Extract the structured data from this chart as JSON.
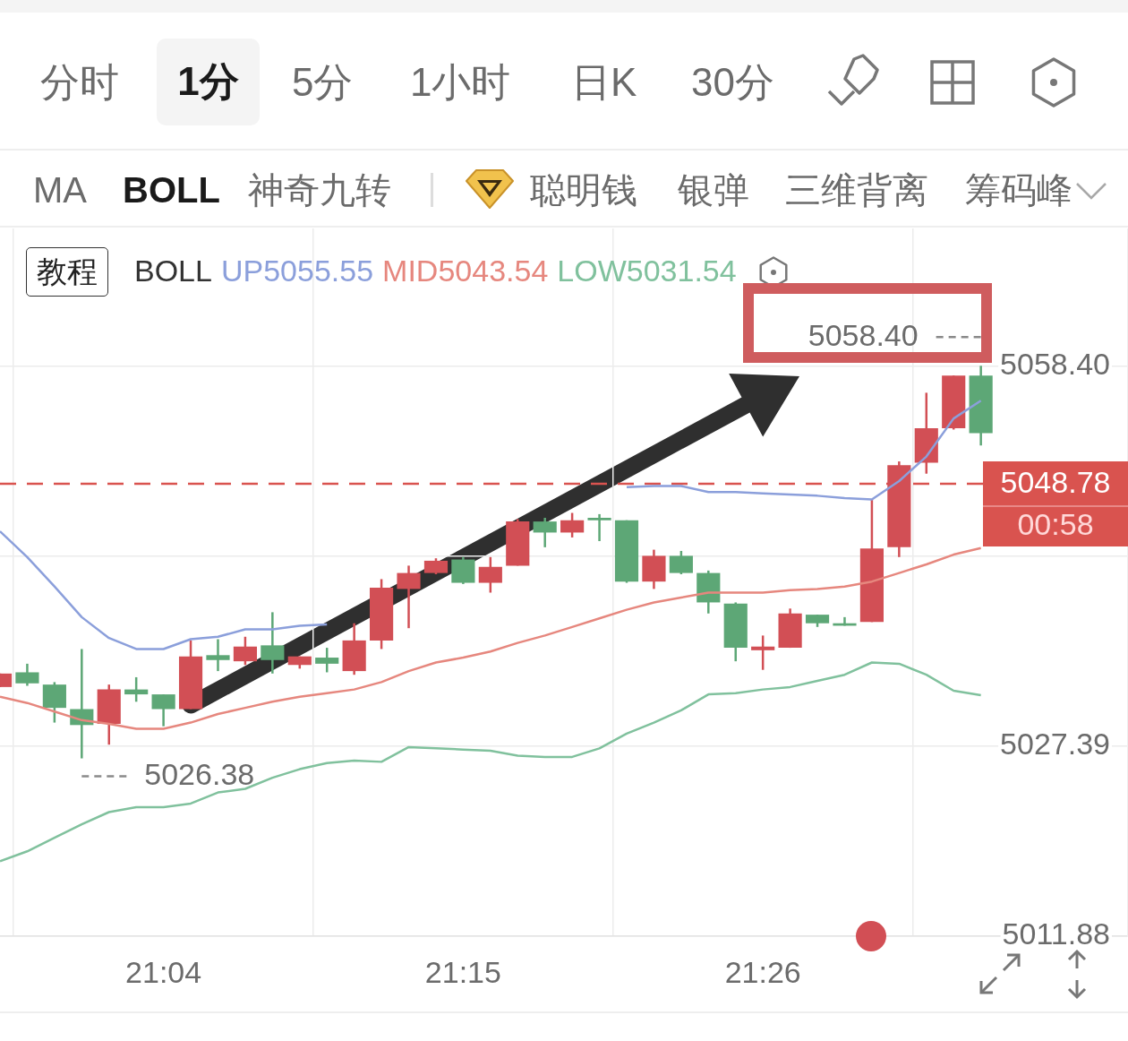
{
  "chart_data": {
    "type": "candlestick",
    "categories": [
      null,
      null,
      null,
      null,
      null,
      null,
      "21:04",
      null,
      null,
      null,
      null,
      null,
      null,
      null,
      null,
      null,
      null,
      "21:15",
      null,
      null,
      null,
      null,
      null,
      null,
      null,
      null,
      null,
      null,
      "21:26",
      null,
      null,
      null,
      null,
      null,
      null,
      null,
      null
    ],
    "ohlc": [
      [
        5032.2,
        5033.3,
        5032.2,
        5033.3
      ],
      [
        5033.4,
        5034.1,
        5032.3,
        5032.5
      ],
      [
        5032.4,
        5032.6,
        5029.3,
        5030.5
      ],
      [
        5030.4,
        5035.3,
        5026.38,
        5029.1
      ],
      [
        5029.2,
        5032.4,
        5027.5,
        5032.0
      ],
      [
        5032.0,
        5033.0,
        5031.0,
        5031.6
      ],
      [
        5031.6,
        5031.6,
        5029.0,
        5030.4
      ],
      [
        5030.4,
        5036.0,
        5030.4,
        5034.7
      ],
      [
        5034.8,
        5036.1,
        5033.5,
        5034.4
      ],
      [
        5034.3,
        5036.3,
        5034.0,
        5035.5
      ],
      [
        5035.6,
        5038.3,
        5033.3,
        5034.4
      ],
      [
        5034.0,
        5034.7,
        5033.7,
        5034.7
      ],
      [
        5034.6,
        5035.4,
        5033.4,
        5034.1
      ],
      [
        5033.5,
        5037.4,
        5033.2,
        5036.0
      ],
      [
        5036.0,
        5041.0,
        5035.3,
        5040.3
      ],
      [
        5040.2,
        5042.1,
        5037.0,
        5041.5
      ],
      [
        5041.5,
        5042.7,
        5041.4,
        5042.5
      ],
      [
        5042.6,
        5042.8,
        5040.6,
        5040.7
      ],
      [
        5040.7,
        5042.8,
        5039.9,
        5042.0
      ],
      [
        5042.1,
        5045.9,
        5042.1,
        5045.7
      ],
      [
        5045.7,
        5046.0,
        5043.6,
        5044.8
      ],
      [
        5044.8,
        5046.4,
        5044.4,
        5045.8
      ],
      [
        5046.0,
        5046.3,
        5044.1,
        5045.8
      ],
      [
        5045.8,
        5045.8,
        5040.7,
        5040.8
      ],
      [
        5040.8,
        5043.4,
        5040.2,
        5042.9
      ],
      [
        5042.9,
        5043.3,
        5041.4,
        5041.5
      ],
      [
        5041.5,
        5041.7,
        5038.2,
        5039.1
      ],
      [
        5039.0,
        5039.1,
        5034.3,
        5035.4
      ],
      [
        5035.2,
        5036.4,
        5033.6,
        5035.5
      ],
      [
        5035.4,
        5038.6,
        5035.4,
        5038.2
      ],
      [
        5038.1,
        5038.1,
        5037.1,
        5037.4
      ],
      [
        5037.4,
        5037.9,
        5037.2,
        5037.2
      ],
      [
        5037.5,
        5047.5,
        5037.5,
        5043.5
      ],
      [
        5043.6,
        5050.6,
        5042.8,
        5050.3
      ],
      [
        5050.5,
        5056.2,
        5049.6,
        5053.3
      ],
      [
        5053.3,
        5057.6,
        5053.2,
        5057.6
      ],
      [
        5057.6,
        5058.4,
        5051.9,
        5052.9
      ]
    ],
    "colors": [
      "#d24f55",
      "#5da776",
      "#5da776",
      "#5da776",
      "#d24f55",
      "#5da776",
      "#5da776",
      "#d24f55",
      "#5da776",
      "#d24f55",
      "#5da776",
      "#d24f55",
      "#5da776",
      "#d24f55",
      "#d24f55",
      "#d24f55",
      "#d24f55",
      "#5da776",
      "#d24f55",
      "#d24f55",
      "#5da776",
      "#d24f55",
      "#5da776",
      "#5da776",
      "#d24f55",
      "#5da776",
      "#5da776",
      "#5da776",
      "#d24f55",
      "#d24f55",
      "#5da776",
      "#5da776",
      "#d24f55",
      "#d24f55",
      "#d24f55",
      "#d24f55",
      "#5da776"
    ],
    "series": [
      {
        "name": "UP5055.55",
        "type": "line",
        "color": "#8b9fdb",
        "values": [
          5044.9,
          5042.8,
          5040.4,
          5037.9,
          5036.2,
          5035.3,
          5035.3,
          5036.1,
          5036.3,
          5036.9,
          5036.9,
          5037.2,
          5037.3,
          null,
          null,
          null,
          null,
          null,
          null,
          null,
          null,
          null,
          null,
          5048.5,
          5048.6,
          5048.6,
          5048.1,
          5048.1,
          5048.0,
          5047.9,
          5047.8,
          5047.6,
          5047.5,
          5049.0,
          5051.0,
          5054.1,
          5055.55
        ]
      },
      {
        "name": "MID5043.54",
        "type": "line",
        "color": "#e6877e",
        "values": [
          5031.4,
          5030.9,
          5030.2,
          5029.5,
          5029.2,
          5028.8,
          5028.8,
          5029.3,
          5030.0,
          5030.5,
          5031.0,
          5031.4,
          5031.7,
          5032.0,
          5032.6,
          5033.5,
          5034.2,
          5034.6,
          5035.1,
          5035.8,
          5036.4,
          5037.1,
          5037.8,
          5038.5,
          5039.1,
          5039.5,
          5039.9,
          5039.9,
          5039.9,
          5040.1,
          5040.2,
          5040.4,
          5040.8,
          5041.5,
          5042.2,
          5043.0,
          5043.54
        ]
      },
      {
        "name": "LOW5031.54",
        "type": "line",
        "color": "#80c19d",
        "values": [
          5018.0,
          5018.8,
          5019.9,
          5021.0,
          5022.0,
          5022.4,
          5022.4,
          5022.7,
          5023.6,
          5023.9,
          5024.8,
          5025.5,
          5026.0,
          5026.2,
          5026.1,
          5027.3,
          5027.2,
          5027.1,
          5027.0,
          5026.6,
          5026.5,
          5026.5,
          5027.2,
          5028.4,
          5029.3,
          5030.3,
          5031.6,
          5031.7,
          5032.0,
          5032.2,
          5032.7,
          5033.2,
          5034.2,
          5034.1,
          5033.2,
          5031.9,
          5031.54
        ]
      }
    ],
    "ylim": [
      5011.88,
      5069.6
    ],
    "yticks": [
      5011.88,
      5027.39,
      {
        "value": 5042.9,
        "label": null
      },
      {
        "value": 5058.4,
        "label": "5058.40"
      }
    ],
    "grid": true,
    "legend": "top left",
    "legend_title": "BOLL",
    "ref_lines": [
      {
        "axis": "y",
        "value": 5048.78,
        "color": "#d9534f",
        "line_style": "dashed"
      }
    ],
    "annotations": [
      "分时",
      "1分",
      "5分",
      "1小时",
      "日K",
      "30分",
      "MA",
      "BOLL",
      "神奇九转",
      "聪明钱",
      "银弹",
      "三维背离",
      "筹码峰",
      "教程",
      "00:58",
      "5058.40",
      "5026.38",
      "5048.78"
    ]
  }
}
